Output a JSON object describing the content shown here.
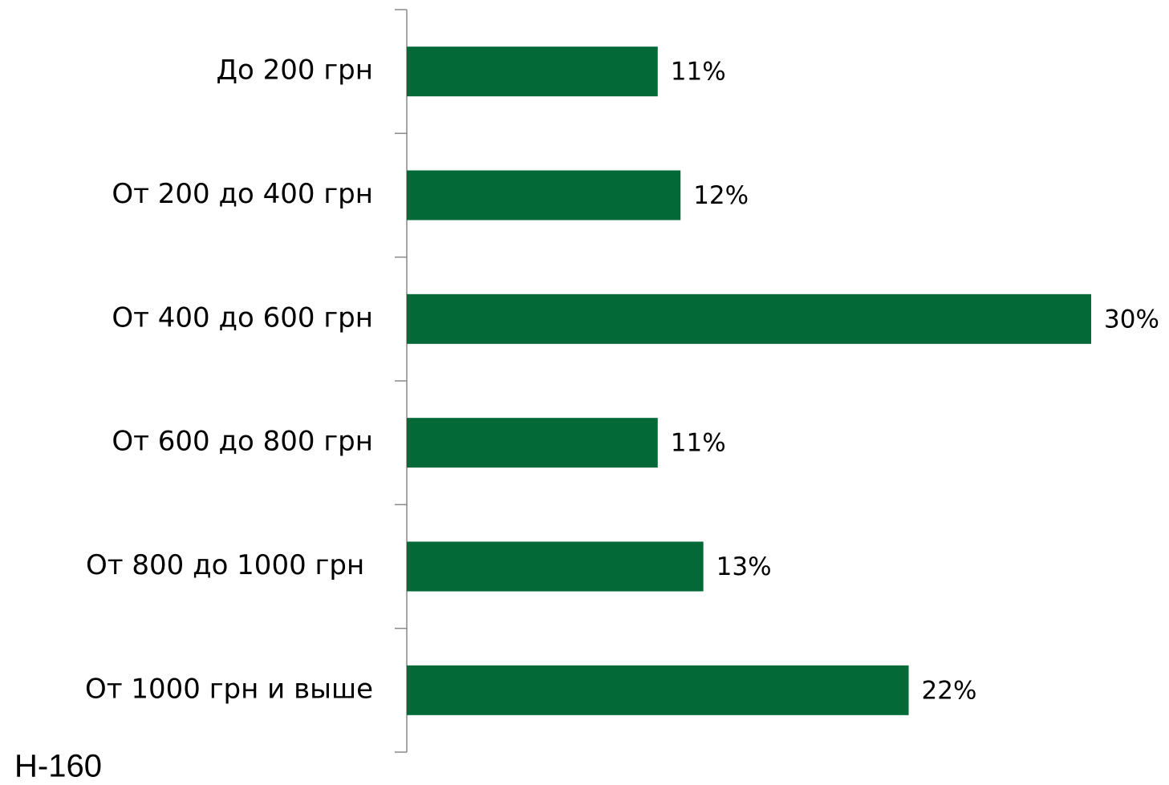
{
  "chart_data": {
    "type": "hbar",
    "categories": [
      "До 200 грн",
      "От 200 до 400 грн",
      "От 400 до 600 грн",
      "От 600 до 800 грн",
      "От 800 до 1000 грн ",
      "От 1000 грн и выше"
    ],
    "values": [
      11,
      12,
      30,
      11,
      13,
      22
    ],
    "value_labels": [
      "11%",
      "12%",
      "30%",
      "11%",
      "13%",
      "22%"
    ],
    "color": "#026937",
    "xlim": [
      0,
      30
    ],
    "note": "H-160"
  }
}
